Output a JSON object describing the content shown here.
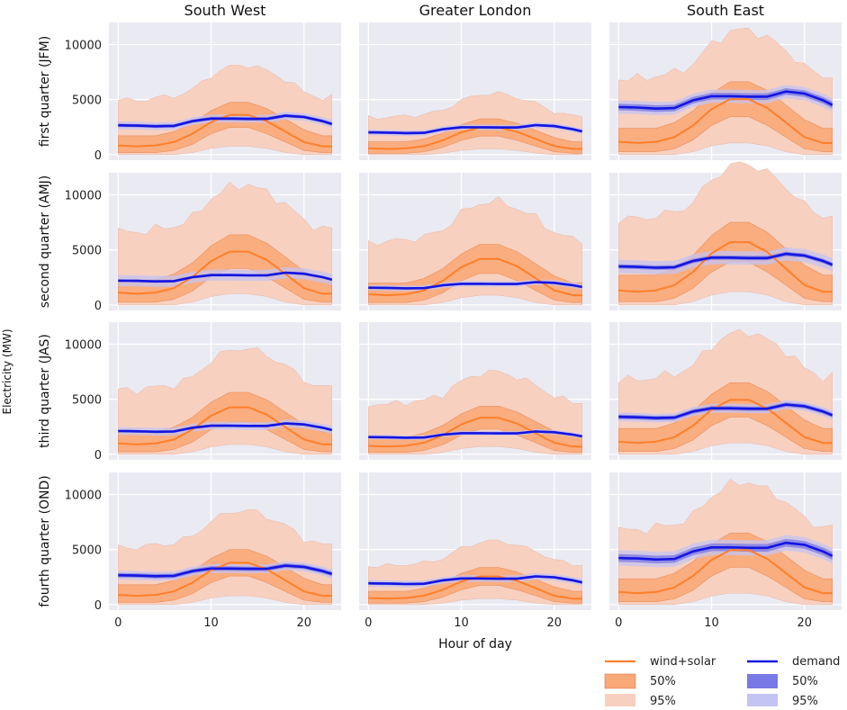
{
  "chart_data": {
    "type": "line",
    "ylabel": "Electricity (MW)",
    "xlabel": "Hour of day",
    "xlim": [
      -1,
      24
    ],
    "ylim": [
      -500,
      12000
    ],
    "xticks": [
      0,
      10,
      20
    ],
    "yticks": [
      0,
      5000,
      10000
    ],
    "columns": [
      "South West",
      "Greater London",
      "South East"
    ],
    "rows": [
      "first quarter (JFM)",
      "second quarter (AMJ)",
      "third quarter (JAS)",
      "fourth quarter (OND)"
    ],
    "colors": {
      "supply_line": "#ff7f2a",
      "supply_50": "#f9a878",
      "supply_95": "#f7d0c0",
      "demand_line": "#1515e0",
      "demand_50": "#7878e6",
      "demand_95": "#c4c4f2"
    },
    "legend": {
      "supply_line": "wind+solar",
      "supply_50": "50%",
      "supply_95": "95%",
      "demand_line": "demand",
      "demand_50": "50%",
      "demand_95": "95%"
    },
    "supply_shape": {
      "hours": [
        0,
        2,
        4,
        6,
        8,
        10,
        12,
        14,
        16,
        18,
        20,
        22,
        23
      ],
      "median": [
        0.22,
        0.2,
        0.22,
        0.3,
        0.5,
        0.78,
        0.95,
        0.95,
        0.8,
        0.55,
        0.3,
        0.2,
        0.2
      ],
      "p25": [
        0.05,
        0.05,
        0.05,
        0.1,
        0.25,
        0.5,
        0.65,
        0.65,
        0.5,
        0.3,
        0.1,
        0.05,
        0.05
      ],
      "p75": [
        0.45,
        0.45,
        0.45,
        0.55,
        0.75,
        1.05,
        1.25,
        1.25,
        1.1,
        0.85,
        0.6,
        0.45,
        0.45
      ],
      "p2_5": [
        0.0,
        0.0,
        0.0,
        0.0,
        0.05,
        0.15,
        0.2,
        0.2,
        0.15,
        0.05,
        0.0,
        0.0,
        0.0
      ],
      "p97_5": [
        1.3,
        1.3,
        1.35,
        1.4,
        1.55,
        1.9,
        2.1,
        2.15,
        2.0,
        1.8,
        1.5,
        1.35,
        1.35
      ]
    },
    "demand_shape": {
      "hours": [
        0,
        2,
        4,
        6,
        8,
        10,
        12,
        14,
        16,
        18,
        20,
        22,
        23
      ],
      "median": [
        0.92,
        0.91,
        0.89,
        0.9,
        1.05,
        1.13,
        1.13,
        1.12,
        1.12,
        1.22,
        1.18,
        1.05,
        0.96
      ]
    },
    "panels": [
      {
        "row": 0,
        "col": 0,
        "supply_peak": 3800,
        "demand_level": 2900,
        "demand_band50": 150,
        "demand_band95": 350
      },
      {
        "row": 0,
        "col": 1,
        "supply_peak": 2600,
        "demand_level": 2200,
        "demand_band50": 120,
        "demand_band95": 250
      },
      {
        "row": 0,
        "col": 2,
        "supply_peak": 5300,
        "demand_level": 4700,
        "demand_band50": 300,
        "demand_band95": 600
      },
      {
        "row": 1,
        "col": 0,
        "supply_peak": 5100,
        "demand_level": 2400,
        "demand_band50": 120,
        "demand_band95": 500
      },
      {
        "row": 1,
        "col": 1,
        "supply_peak": 4400,
        "demand_level": 1700,
        "demand_band50": 100,
        "demand_band95": 250
      },
      {
        "row": 1,
        "col": 2,
        "supply_peak": 6000,
        "demand_level": 3800,
        "demand_band50": 200,
        "demand_band95": 600
      },
      {
        "row": 2,
        "col": 0,
        "supply_peak": 4500,
        "demand_level": 2300,
        "demand_band50": 120,
        "demand_band95": 350
      },
      {
        "row": 2,
        "col": 1,
        "supply_peak": 3500,
        "demand_level": 1700,
        "demand_band50": 100,
        "demand_band95": 200
      },
      {
        "row": 2,
        "col": 2,
        "supply_peak": 5200,
        "demand_level": 3700,
        "demand_band50": 200,
        "demand_band95": 400
      },
      {
        "row": 3,
        "col": 0,
        "supply_peak": 4000,
        "demand_level": 2900,
        "demand_band50": 200,
        "demand_band95": 400
      },
      {
        "row": 3,
        "col": 1,
        "supply_peak": 2700,
        "demand_level": 2100,
        "demand_band50": 120,
        "demand_band95": 300
      },
      {
        "row": 3,
        "col": 2,
        "supply_peak": 5200,
        "demand_level": 4600,
        "demand_band50": 350,
        "demand_band95": 700
      }
    ]
  }
}
